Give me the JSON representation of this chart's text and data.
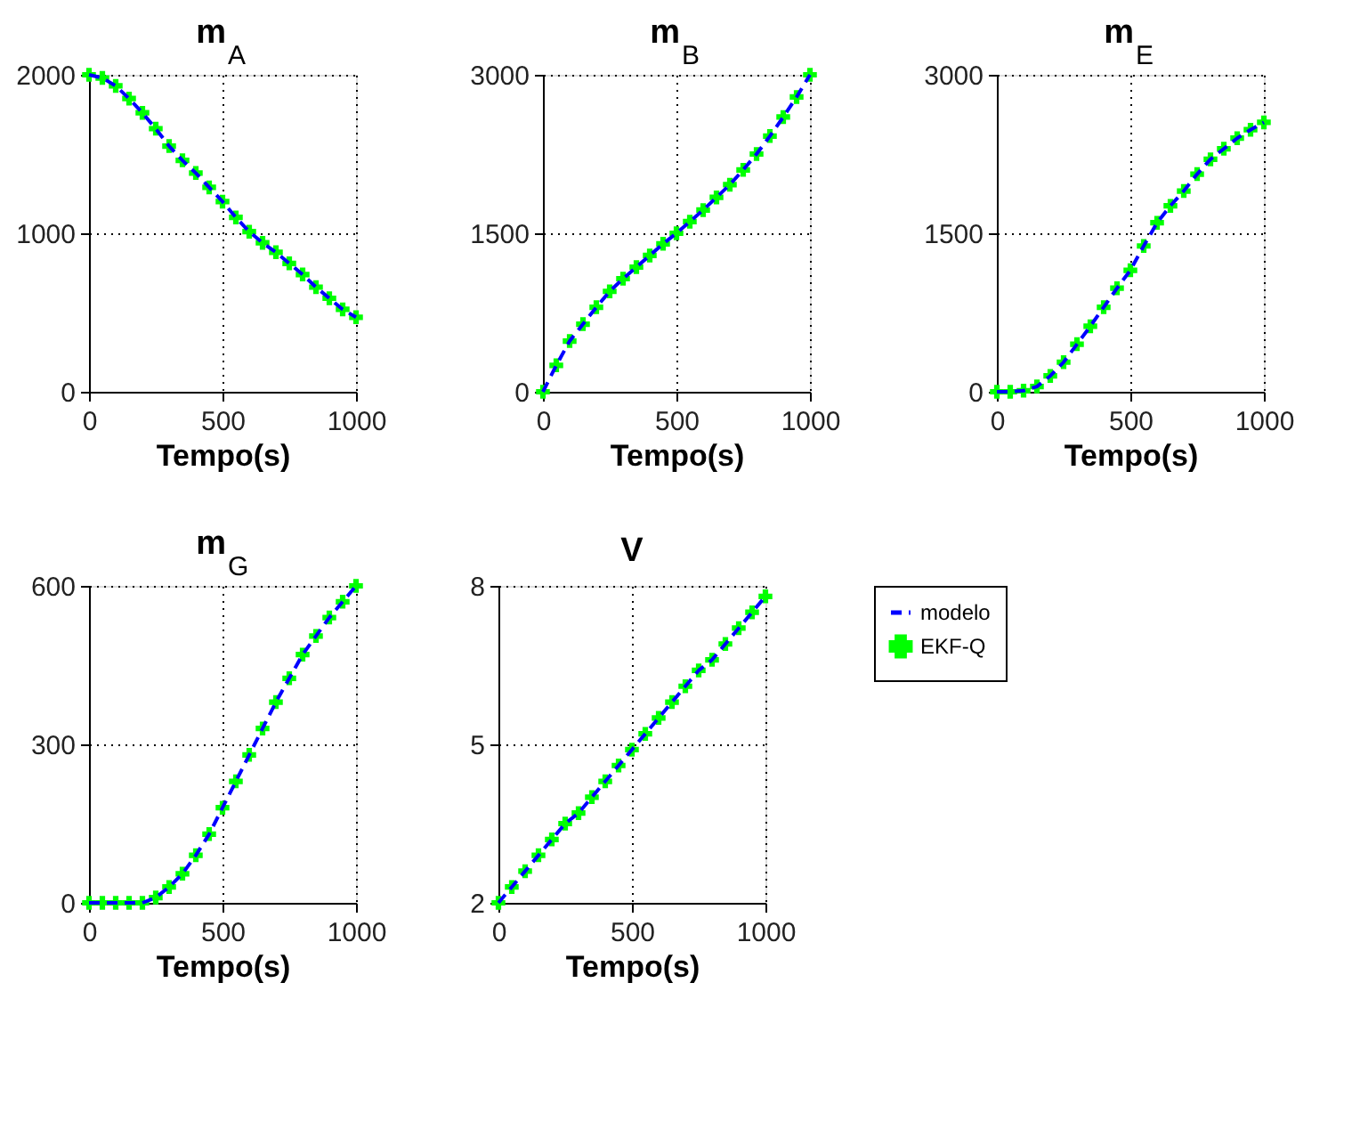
{
  "chart_data": [
    {
      "type": "line",
      "title": "m$_{A}$",
      "xlabel": "Tempo(s)",
      "x": [
        0,
        50,
        100,
        150,
        200,
        250,
        300,
        350,
        400,
        450,
        500,
        550,
        600,
        650,
        700,
        750,
        800,
        850,
        900,
        950,
        1000
      ],
      "xlim": [
        0,
        1000
      ],
      "xticks": [
        0,
        500,
        1000
      ],
      "ylim": [
        0,
        2000
      ],
      "yticks": [
        0,
        1000,
        2000
      ],
      "grid": true,
      "series": [
        {
          "color": "#0000ff",
          "line_style": "dashed",
          "values": [
            2000,
            1980,
            1930,
            1850,
            1760,
            1660,
            1550,
            1460,
            1380,
            1290,
            1200,
            1100,
            1010,
            940,
            880,
            810,
            740,
            660,
            590,
            520,
            470
          ]
        },
        {
          "type": "scatter",
          "color": "#00ff00",
          "marker": "cross",
          "values": [
            2000,
            1980,
            1930,
            1850,
            1760,
            1660,
            1550,
            1460,
            1380,
            1290,
            1200,
            1100,
            1010,
            940,
            880,
            810,
            740,
            660,
            590,
            520,
            470
          ]
        }
      ]
    },
    {
      "type": "line",
      "title": "m$_{B}$",
      "xlabel": "Tempo(s)",
      "x": [
        0,
        50,
        100,
        150,
        200,
        250,
        300,
        350,
        400,
        450,
        500,
        550,
        600,
        650,
        700,
        750,
        800,
        850,
        900,
        950,
        1000
      ],
      "xlim": [
        0,
        1000
      ],
      "xticks": [
        0,
        500,
        1000
      ],
      "ylim": [
        0,
        3000
      ],
      "yticks": [
        0,
        1500,
        3000
      ],
      "grid": true,
      "series": [
        {
          "color": "#0000ff",
          "line_style": "dashed",
          "values": [
            0,
            250,
            480,
            640,
            800,
            950,
            1070,
            1180,
            1290,
            1400,
            1500,
            1610,
            1720,
            1840,
            1960,
            2100,
            2250,
            2420,
            2600,
            2790,
            3000
          ]
        },
        {
          "type": "scatter",
          "color": "#00ff00",
          "marker": "cross",
          "values": [
            0,
            250,
            480,
            640,
            800,
            950,
            1070,
            1180,
            1290,
            1400,
            1500,
            1610,
            1720,
            1840,
            1960,
            2100,
            2250,
            2420,
            2600,
            2790,
            3000
          ]
        }
      ]
    },
    {
      "type": "line",
      "title": "m$_{E}$",
      "xlabel": "Tempo(s)",
      "x": [
        0,
        50,
        100,
        150,
        200,
        250,
        300,
        350,
        400,
        450,
        500,
        550,
        600,
        650,
        700,
        750,
        800,
        850,
        900,
        950,
        1000
      ],
      "xlim": [
        0,
        1000
      ],
      "xticks": [
        0,
        500,
        1000
      ],
      "ylim": [
        0,
        3000
      ],
      "yticks": [
        0,
        1500,
        3000
      ],
      "grid": true,
      "series": [
        {
          "color": "#0000ff",
          "line_style": "dashed",
          "values": [
            0,
            0,
            10,
            50,
            150,
            280,
            450,
            620,
            800,
            980,
            1150,
            1380,
            1600,
            1760,
            1900,
            2060,
            2200,
            2300,
            2400,
            2480,
            2550
          ]
        },
        {
          "type": "scatter",
          "color": "#00ff00",
          "marker": "cross",
          "values": [
            0,
            0,
            10,
            50,
            150,
            280,
            450,
            620,
            800,
            980,
            1150,
            1380,
            1600,
            1760,
            1900,
            2060,
            2200,
            2300,
            2400,
            2480,
            2550
          ]
        }
      ]
    },
    {
      "type": "line",
      "title": "m$_{G}$",
      "xlabel": "Tempo(s)",
      "x": [
        0,
        50,
        100,
        150,
        200,
        250,
        300,
        350,
        400,
        450,
        500,
        550,
        600,
        650,
        700,
        750,
        800,
        850,
        900,
        950,
        1000
      ],
      "xlim": [
        0,
        1000
      ],
      "xticks": [
        0,
        500,
        1000
      ],
      "ylim": [
        0,
        600
      ],
      "yticks": [
        0,
        300,
        600
      ],
      "grid": true,
      "series": [
        {
          "color": "#0000ff",
          "line_style": "dashed",
          "values": [
            0,
            0,
            0,
            0,
            0,
            10,
            30,
            55,
            90,
            130,
            180,
            230,
            280,
            330,
            380,
            425,
            470,
            505,
            540,
            570,
            600
          ]
        },
        {
          "type": "scatter",
          "color": "#00ff00",
          "marker": "cross",
          "values": [
            0,
            0,
            0,
            0,
            0,
            10,
            30,
            55,
            90,
            130,
            180,
            230,
            280,
            330,
            380,
            425,
            470,
            505,
            540,
            570,
            600
          ]
        }
      ]
    },
    {
      "type": "line",
      "title": "V",
      "xlabel": "Tempo(s)",
      "x": [
        0,
        50,
        100,
        150,
        200,
        250,
        300,
        350,
        400,
        450,
        500,
        550,
        600,
        650,
        700,
        750,
        800,
        850,
        900,
        950,
        1000
      ],
      "xlim": [
        0,
        1000
      ],
      "xticks": [
        0,
        500,
        1000
      ],
      "ylim": [
        2,
        8
      ],
      "yticks": [
        2,
        5,
        8
      ],
      "grid": true,
      "legend": "right",
      "series": [
        {
          "name": "modelo",
          "color": "#0000ff",
          "line_style": "dashed",
          "values": [
            2.0,
            2.3,
            2.6,
            2.9,
            3.2,
            3.5,
            3.7,
            4.0,
            4.3,
            4.6,
            4.9,
            5.2,
            5.5,
            5.8,
            6.1,
            6.4,
            6.6,
            6.9,
            7.2,
            7.5,
            7.8
          ]
        },
        {
          "name": "EKF-Q",
          "type": "scatter",
          "color": "#00ff00",
          "marker": "cross",
          "values": [
            2.0,
            2.3,
            2.6,
            2.9,
            3.2,
            3.5,
            3.7,
            4.0,
            4.3,
            4.6,
            4.9,
            5.2,
            5.5,
            5.8,
            6.1,
            6.4,
            6.6,
            6.9,
            7.2,
            7.5,
            7.8
          ]
        }
      ]
    }
  ]
}
